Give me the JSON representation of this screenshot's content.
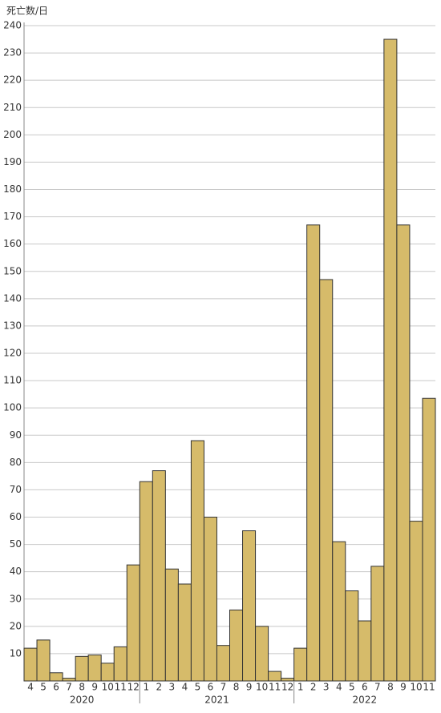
{
  "chart_data": {
    "type": "bar",
    "y_label": "死亡数/日",
    "groups": [
      {
        "name": "2020",
        "categories": [
          "4",
          "5",
          "6",
          "7",
          "8",
          "9",
          "10",
          "11",
          "12"
        ],
        "values": [
          12,
          15,
          3,
          1,
          9,
          9.5,
          6.5,
          12.5,
          42.5
        ]
      },
      {
        "name": "2021",
        "categories": [
          "1",
          "2",
          "3",
          "4",
          "5",
          "6",
          "7",
          "8",
          "9",
          "10",
          "11",
          "12"
        ],
        "values": [
          73,
          77,
          41,
          35.5,
          88,
          60,
          13,
          26,
          55,
          20,
          3.5,
          1
        ]
      },
      {
        "name": "2022",
        "categories": [
          "1",
          "2",
          "3",
          "4",
          "5",
          "6",
          "7",
          "8",
          "9",
          "10",
          "11"
        ],
        "values": [
          12,
          167,
          147,
          51,
          33,
          22,
          42,
          235,
          167,
          58.5,
          103.5
        ]
      }
    ],
    "color": "#d6bb6a",
    "edge_color": "#333333",
    "ylim": [
      0,
      240
    ],
    "yticks": [
      10,
      20,
      30,
      40,
      50,
      60,
      70,
      80,
      90,
      100,
      110,
      120,
      130,
      140,
      150,
      160,
      170,
      180,
      190,
      200,
      210,
      220,
      230,
      240
    ],
    "grid": true
  }
}
